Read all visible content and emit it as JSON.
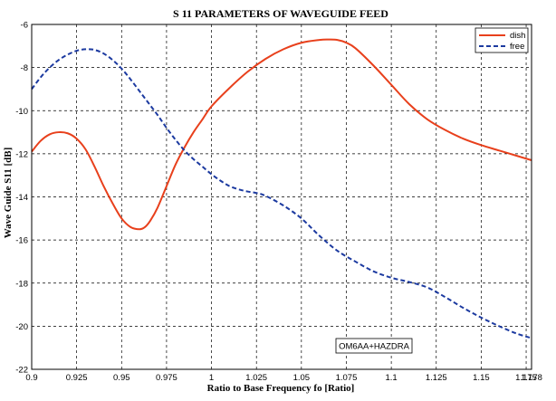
{
  "chart_data": {
    "type": "line",
    "title": "S 11 PARAMETERS OF WAVEGUIDE FEED",
    "xlabel": "Ratio to Base Frequency fo  [Ratio]",
    "ylabel": "Wave Guide S11  [dB]",
    "xlim": [
      0.9,
      1.178
    ],
    "ylim": [
      -22,
      -6
    ],
    "grid": true,
    "x_ticks": [
      0.9,
      0.925,
      0.95,
      0.975,
      1,
      1.025,
      1.05,
      1.075,
      1.1,
      1.125,
      1.15,
      1.175,
      1.178
    ],
    "x_tick_labels": [
      "0.9",
      "0.925",
      "0.95",
      "0.975",
      "1",
      "1.025",
      "1.05",
      "1.075",
      "1.1",
      "1.125",
      "1.15",
      "1.175",
      "1.178"
    ],
    "y_ticks": [
      -22,
      -20,
      -18,
      -16,
      -14,
      -12,
      -10,
      -8,
      -6
    ],
    "y_tick_labels": [
      "-22",
      "-20",
      "-18",
      "-16",
      "-14",
      "-12",
      "-10",
      "-8",
      "-6"
    ],
    "legend_position": "top-right",
    "annotation": "OM6AA+HAZDRA",
    "series": [
      {
        "name": "dish",
        "color": "#e8401c",
        "style": "solid",
        "x": [
          0.9,
          0.905,
          0.91,
          0.915,
          0.92,
          0.925,
          0.93,
          0.935,
          0.94,
          0.945,
          0.95,
          0.955,
          0.96,
          0.963,
          0.966,
          0.97,
          0.975,
          0.98,
          0.985,
          0.99,
          0.995,
          1.0,
          1.01,
          1.02,
          1.03,
          1.04,
          1.05,
          1.06,
          1.065,
          1.07,
          1.075,
          1.08,
          1.09,
          1.1,
          1.11,
          1.12,
          1.13,
          1.14,
          1.15,
          1.16,
          1.17,
          1.178
        ],
        "y": [
          -11.9,
          -11.4,
          -11.1,
          -11.0,
          -11.05,
          -11.3,
          -11.8,
          -12.6,
          -13.5,
          -14.3,
          -15.0,
          -15.4,
          -15.5,
          -15.4,
          -15.1,
          -14.5,
          -13.5,
          -12.5,
          -11.7,
          -11.0,
          -10.4,
          -9.8,
          -8.95,
          -8.2,
          -7.6,
          -7.15,
          -6.85,
          -6.72,
          -6.7,
          -6.72,
          -6.85,
          -7.1,
          -7.9,
          -8.8,
          -9.7,
          -10.4,
          -10.9,
          -11.3,
          -11.6,
          -11.85,
          -12.1,
          -12.3
        ]
      },
      {
        "name": "free",
        "color": "#1c3aa0",
        "style": "dashed",
        "x": [
          0.9,
          0.905,
          0.91,
          0.915,
          0.92,
          0.925,
          0.93,
          0.935,
          0.94,
          0.945,
          0.95,
          0.955,
          0.96,
          0.965,
          0.97,
          0.975,
          0.98,
          0.985,
          0.99,
          0.995,
          1.0,
          1.005,
          1.01,
          1.015,
          1.02,
          1.025,
          1.03,
          1.04,
          1.05,
          1.06,
          1.07,
          1.08,
          1.09,
          1.1,
          1.11,
          1.12,
          1.13,
          1.14,
          1.15,
          1.16,
          1.17,
          1.178
        ],
        "y": [
          -9.0,
          -8.45,
          -8.0,
          -7.65,
          -7.4,
          -7.22,
          -7.15,
          -7.18,
          -7.35,
          -7.65,
          -8.05,
          -8.55,
          -9.1,
          -9.65,
          -10.2,
          -10.8,
          -11.35,
          -11.85,
          -12.25,
          -12.6,
          -12.95,
          -13.25,
          -13.5,
          -13.65,
          -13.75,
          -13.82,
          -13.95,
          -14.4,
          -15.0,
          -15.8,
          -16.5,
          -17.0,
          -17.45,
          -17.75,
          -17.95,
          -18.2,
          -18.65,
          -19.15,
          -19.6,
          -20.0,
          -20.35,
          -20.55
        ]
      }
    ]
  }
}
